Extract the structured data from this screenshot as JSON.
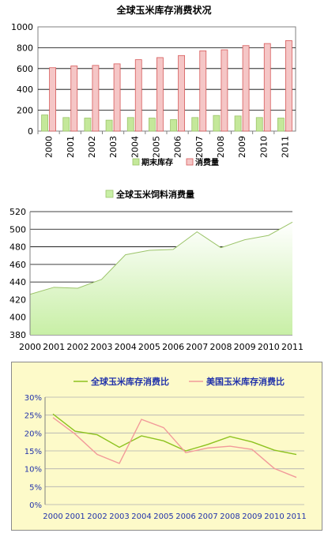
{
  "chart_data": [
    {
      "type": "bar",
      "title": "全球玉米库存消费状况",
      "categories": [
        "2000",
        "2001",
        "2002",
        "2003",
        "2004",
        "2005",
        "2006",
        "2007",
        "2008",
        "2009",
        "2010",
        "2011"
      ],
      "series": [
        {
          "name": "期末库存",
          "values": [
            155,
            130,
            125,
            105,
            130,
            125,
            110,
            130,
            150,
            145,
            130,
            125
          ],
          "color": "#c4e89a"
        },
        {
          "name": "消费量",
          "values": [
            608,
            625,
            630,
            645,
            685,
            705,
            725,
            770,
            780,
            820,
            840,
            868
          ],
          "color": "#f5c6c6"
        }
      ],
      "ylim": [
        0,
        1000
      ],
      "yticks": [
        "0",
        "200",
        "400",
        "600",
        "800",
        "1000"
      ],
      "legend": "bottom",
      "grid": true
    },
    {
      "type": "area",
      "categories": [
        "2000",
        "2001",
        "2002",
        "2003",
        "2004",
        "2005",
        "2006",
        "2007",
        "2008",
        "2009",
        "2010",
        "2011"
      ],
      "series": [
        {
          "name": "全球玉米饲料消费量",
          "values": [
            426,
            434,
            433,
            443,
            471,
            476,
            477,
            497,
            479,
            488,
            493,
            508
          ],
          "color": "#c8efa6"
        }
      ],
      "ylim": [
        380,
        520
      ],
      "yticks": [
        "380",
        "400",
        "420",
        "440",
        "460",
        "480",
        "500",
        "520"
      ],
      "legend": "top",
      "grid": true
    },
    {
      "type": "line",
      "categories": [
        "2000",
        "2001",
        "2002",
        "2003",
        "2004",
        "2005",
        "2006",
        "2007",
        "2008",
        "2009",
        "2010",
        "2011"
      ],
      "series": [
        {
          "name": "全球玉米库存消费比",
          "values": [
            25.3,
            20.5,
            19.5,
            16,
            19.2,
            17.8,
            15,
            16.8,
            19,
            17.5,
            15.2,
            14
          ],
          "color": "#8dc21f"
        },
        {
          "name": "美国玉米库存消费比",
          "values": [
            24.3,
            19.7,
            14,
            11.5,
            23.8,
            21.5,
            14.5,
            15.8,
            16.3,
            15.4,
            10.1,
            7.6
          ],
          "color": "#f29a9a"
        }
      ],
      "ylim": [
        0,
        30
      ],
      "yticks": [
        "0%",
        "5%",
        "10%",
        "15%",
        "20%",
        "25%",
        "30%"
      ],
      "legend": "top",
      "grid": true
    }
  ]
}
